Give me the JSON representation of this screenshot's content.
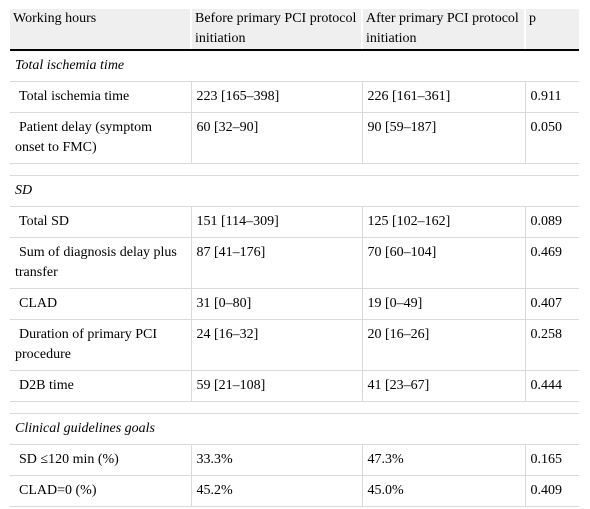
{
  "table": {
    "headers": [
      "Working hours",
      "Before primary PCI protocol initiation",
      "After primary PCI protocol initiation",
      "p"
    ],
    "sections": [
      {
        "title": "Total ischemia time",
        "rows": [
          [
            "Total ischemia time",
            "223 [165–398]",
            "226 [161–361]",
            "0.911"
          ],
          [
            "Patient delay (symptom onset to FMC)",
            "60 [32–90]",
            "90 [59–187]",
            "0.050"
          ]
        ]
      },
      {
        "title": "SD",
        "rows": [
          [
            "Total SD",
            "151 [114–309]",
            "125 [102–162]",
            "0.089"
          ],
          [
            "Sum of diagnosis delay plus transfer",
            "87 [41–176]",
            "70 [60–104]",
            "0.469"
          ],
          [
            "CLAD",
            "31 [0–80]",
            "19 [0–49]",
            "0.407"
          ],
          [
            "Duration of primary PCI procedure",
            "24 [16–32]",
            "20 [16–26]",
            "0.258"
          ],
          [
            "D2B time",
            "59 [21–108]",
            "41 [23–67]",
            "0.444"
          ]
        ]
      },
      {
        "title": "Clinical guidelines goals",
        "rows": [
          [
            "SD ≤120 min (%)",
            "33.3%",
            "47.3%",
            "0.165"
          ],
          [
            "CLAD=0 (%)",
            "45.2%",
            "45.0%",
            "0.409"
          ]
        ]
      }
    ]
  }
}
